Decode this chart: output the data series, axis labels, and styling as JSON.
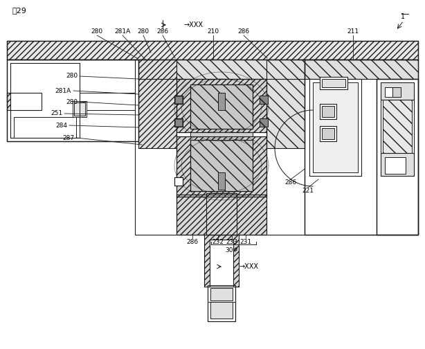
{
  "bg_color": "#ffffff",
  "line_color": "#1a1a1a",
  "figsize": [
    6.14,
    5.04
  ],
  "dpi": 100,
  "fig_title": "図29",
  "arrow_xxx_top": "→XXX",
  "arrow_xxx_bot": "→XXX",
  "labels_top": [
    "280",
    "281A",
    "280",
    "286",
    "210",
    "286",
    "211",
    "1"
  ],
  "labels_left": [
    "280",
    "281A",
    "280",
    "251",
    "284",
    "287"
  ],
  "labels_bot": [
    "286",
    "232",
    "233",
    "231",
    "30#"
  ],
  "labels_right": [
    "286",
    "221"
  ]
}
